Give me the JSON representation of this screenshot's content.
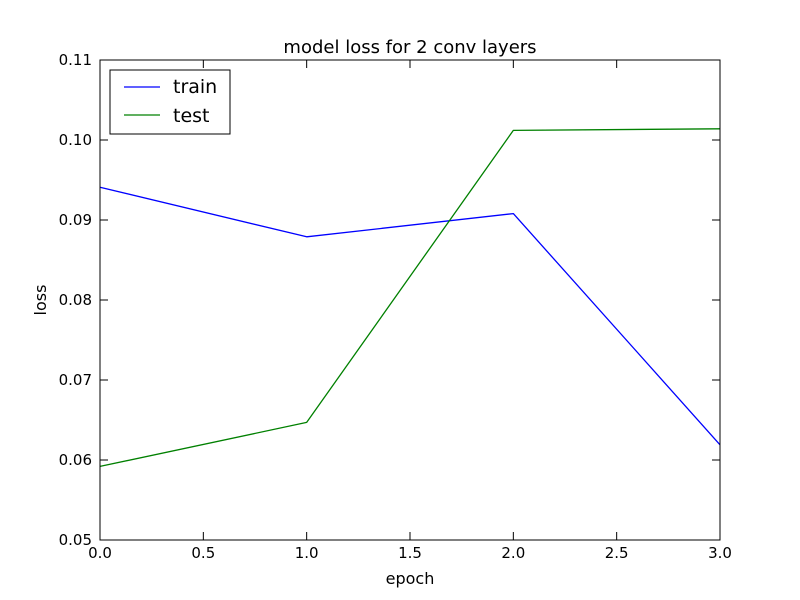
{
  "chart_data": {
    "type": "line",
    "title": "model loss for 2 conv layers",
    "xlabel": "epoch",
    "ylabel": "loss",
    "xlim": [
      0,
      3
    ],
    "ylim": [
      0.05,
      0.11
    ],
    "x_ticks": [
      0,
      0.5,
      1,
      1.5,
      2,
      2.5,
      3
    ],
    "x_tick_labels": [
      "0.0",
      "0.5",
      "1.0",
      "1.5",
      "2.0",
      "2.5",
      "3.0"
    ],
    "y_ticks": [
      0.05,
      0.06,
      0.07,
      0.08,
      0.09,
      0.1,
      0.11
    ],
    "y_tick_labels": [
      "0.05",
      "0.06",
      "0.07",
      "0.08",
      "0.09",
      "0.10",
      "0.11"
    ],
    "grid": false,
    "legend_position": "top-left",
    "series": [
      {
        "name": "train",
        "color": "#0000ff",
        "x": [
          0,
          1,
          2,
          3
        ],
        "y": [
          0.0941,
          0.0879,
          0.0908,
          0.0619
        ]
      },
      {
        "name": "test",
        "color": "#008000",
        "x": [
          0,
          1,
          2,
          3
        ],
        "y": [
          0.0592,
          0.0647,
          0.1012,
          0.1014
        ]
      }
    ]
  }
}
